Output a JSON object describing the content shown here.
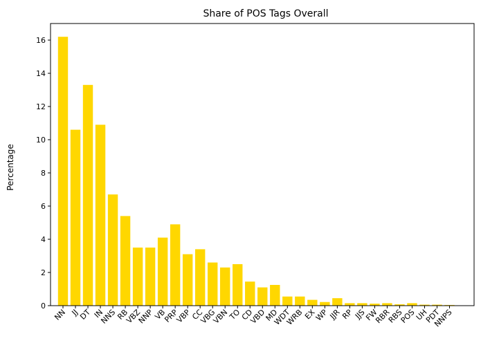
{
  "chart_data": {
    "type": "bar",
    "title": "Share of POS Tags Overall",
    "xlabel": "",
    "ylabel": "Percentage",
    "ylim": [
      0,
      17
    ],
    "yticks": [
      0,
      2,
      4,
      6,
      8,
      10,
      12,
      14,
      16
    ],
    "categories": [
      "NN",
      "JJ",
      "DT",
      "IN",
      "NNS",
      "RB",
      "VBZ",
      "NNP",
      "VB",
      "PRP",
      "VBP",
      "CC",
      "VBG",
      "VBN",
      "TO",
      "CD",
      "VBD",
      "MD",
      "WDT",
      "WRB",
      "EX",
      "WP",
      "JJR",
      "RP",
      "JJS",
      "FW",
      "RBR",
      "RBS",
      "POS",
      "UH",
      "PDT",
      "NNPS"
    ],
    "values": [
      16.2,
      10.6,
      13.3,
      10.9,
      6.7,
      5.4,
      3.5,
      3.5,
      4.1,
      4.9,
      3.1,
      3.4,
      2.6,
      2.3,
      2.5,
      1.45,
      1.1,
      1.25,
      0.55,
      0.55,
      0.35,
      0.22,
      0.45,
      0.15,
      0.15,
      0.12,
      0.15,
      0.08,
      0.15,
      0.06,
      0.06,
      0.04
    ],
    "bar_color": "#FFD700",
    "grid": false,
    "legend": "none",
    "xtick_rotation": 45
  }
}
